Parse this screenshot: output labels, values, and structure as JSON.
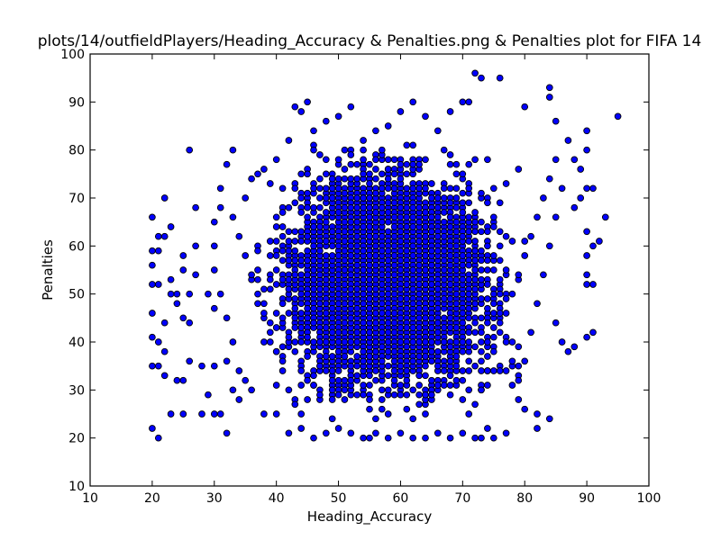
{
  "chart_data": {
    "type": "scatter",
    "title": "plots/14/outfieldPlayers/Heading_Accuracy & Penalties.png & Penalties plot for FIFA 14",
    "xlabel": "Heading_Accuracy",
    "ylabel": "Penalties",
    "xlim": [
      10,
      100
    ],
    "ylim": [
      10,
      100
    ],
    "xticks": [
      "10",
      "20",
      "30",
      "40",
      "50",
      "60",
      "70",
      "80",
      "90",
      "100"
    ],
    "yticks": [
      "10",
      "20",
      "30",
      "40",
      "50",
      "60",
      "70",
      "80",
      "90",
      "100"
    ],
    "grid": false,
    "marker_color": "#0000ff",
    "marker_edge": "#000000",
    "series": [
      {
        "points": [
          [
            20,
            22
          ],
          [
            21,
            20
          ],
          [
            20,
            35
          ],
          [
            21,
            35
          ],
          [
            22,
            33
          ],
          [
            20,
            41
          ],
          [
            21,
            40
          ],
          [
            22,
            38
          ],
          [
            20,
            46
          ],
          [
            22,
            44
          ],
          [
            20,
            52
          ],
          [
            21,
            52
          ],
          [
            20,
            56
          ],
          [
            21,
            59
          ],
          [
            20,
            59
          ],
          [
            20,
            66
          ],
          [
            21,
            62
          ],
          [
            22,
            62
          ],
          [
            22,
            70
          ],
          [
            23,
            64
          ],
          [
            23,
            50
          ],
          [
            24,
            48
          ],
          [
            23,
            53
          ],
          [
            24,
            50
          ],
          [
            25,
            45
          ],
          [
            25,
            55
          ],
          [
            25,
            58
          ],
          [
            23,
            25
          ],
          [
            25,
            25
          ],
          [
            24,
            32
          ],
          [
            25,
            32
          ],
          [
            26,
            80
          ],
          [
            26,
            36
          ],
          [
            26,
            44
          ],
          [
            26,
            50
          ],
          [
            27,
            54
          ],
          [
            27,
            60
          ],
          [
            27,
            68
          ],
          [
            28,
            25
          ],
          [
            28,
            35
          ],
          [
            29,
            29
          ],
          [
            29,
            50
          ],
          [
            30,
            25
          ],
          [
            30,
            35
          ],
          [
            30,
            47
          ],
          [
            31,
            25
          ],
          [
            31,
            72
          ],
          [
            32,
            21
          ],
          [
            32,
            77
          ],
          [
            32,
            36
          ],
          [
            33,
            80
          ],
          [
            33,
            30
          ],
          [
            34,
            28
          ],
          [
            35,
            70
          ],
          [
            36,
            74
          ],
          [
            37,
            75
          ],
          [
            38,
            76
          ],
          [
            40,
            78
          ],
          [
            42,
            82
          ],
          [
            43,
            89
          ],
          [
            44,
            88
          ],
          [
            45,
            90
          ],
          [
            46,
            84
          ],
          [
            48,
            86
          ],
          [
            50,
            87
          ],
          [
            52,
            89
          ],
          [
            54,
            82
          ],
          [
            56,
            84
          ],
          [
            58,
            85
          ],
          [
            60,
            88
          ],
          [
            62,
            90
          ],
          [
            64,
            87
          ],
          [
            66,
            84
          ],
          [
            68,
            88
          ],
          [
            70,
            90
          ],
          [
            71,
            90
          ],
          [
            72,
            96
          ],
          [
            73,
            95
          ],
          [
            76,
            95
          ],
          [
            80,
            89
          ],
          [
            84,
            93
          ],
          [
            84,
            91
          ],
          [
            85,
            86
          ],
          [
            87,
            82
          ],
          [
            88,
            78
          ],
          [
            90,
            84
          ],
          [
            90,
            80
          ],
          [
            89,
            76
          ],
          [
            90,
            72
          ],
          [
            91,
            72
          ],
          [
            89,
            70
          ],
          [
            88,
            68
          ],
          [
            90,
            63
          ],
          [
            90,
            58
          ],
          [
            91,
            60
          ],
          [
            92,
            61
          ],
          [
            93,
            66
          ],
          [
            95,
            87
          ],
          [
            90,
            54
          ],
          [
            90,
            52
          ],
          [
            91,
            52
          ],
          [
            91,
            42
          ],
          [
            90,
            41
          ],
          [
            88,
            39
          ],
          [
            87,
            38
          ],
          [
            86,
            40
          ],
          [
            85,
            44
          ],
          [
            84,
            24
          ],
          [
            82,
            22
          ],
          [
            82,
            25
          ],
          [
            80,
            26
          ],
          [
            79,
            28
          ],
          [
            78,
            31
          ],
          [
            77,
            21
          ],
          [
            75,
            20
          ],
          [
            74,
            22
          ],
          [
            73,
            20
          ],
          [
            72,
            20
          ],
          [
            70,
            21
          ],
          [
            68,
            20
          ],
          [
            66,
            21
          ],
          [
            64,
            20
          ],
          [
            62,
            20
          ],
          [
            60,
            21
          ],
          [
            58,
            20
          ],
          [
            56,
            21
          ],
          [
            55,
            20
          ],
          [
            54,
            20
          ],
          [
            52,
            21
          ],
          [
            50,
            22
          ],
          [
            48,
            21
          ],
          [
            46,
            20
          ],
          [
            44,
            22
          ],
          [
            42,
            21
          ],
          [
            40,
            25
          ],
          [
            38,
            25
          ],
          [
            36,
            30
          ],
          [
            35,
            32
          ],
          [
            34,
            34
          ],
          [
            33,
            40
          ],
          [
            32,
            45
          ],
          [
            31,
            50
          ],
          [
            30,
            55
          ],
          [
            30,
            60
          ],
          [
            30,
            65
          ],
          [
            31,
            68
          ],
          [
            33,
            66
          ],
          [
            34,
            62
          ],
          [
            35,
            58
          ],
          [
            36,
            54
          ],
          [
            37,
            50
          ],
          [
            38,
            46
          ],
          [
            39,
            42
          ],
          [
            40,
            38
          ],
          [
            41,
            34
          ],
          [
            42,
            30
          ],
          [
            43,
            27
          ],
          [
            44,
            25
          ],
          [
            45,
            28
          ],
          [
            46,
            31
          ],
          [
            47,
            35
          ],
          [
            48,
            40
          ],
          [
            49,
            45
          ],
          [
            50,
            50
          ],
          [
            51,
            55
          ],
          [
            52,
            60
          ],
          [
            53,
            65
          ],
          [
            54,
            70
          ],
          [
            55,
            75
          ],
          [
            56,
            78
          ],
          [
            57,
            80
          ],
          [
            58,
            76
          ],
          [
            59,
            72
          ],
          [
            60,
            68
          ],
          [
            61,
            64
          ],
          [
            62,
            60
          ],
          [
            63,
            56
          ],
          [
            64,
            52
          ],
          [
            65,
            48
          ],
          [
            66,
            44
          ],
          [
            67,
            40
          ],
          [
            68,
            36
          ],
          [
            69,
            32
          ],
          [
            70,
            28
          ],
          [
            71,
            25
          ],
          [
            72,
            27
          ],
          [
            73,
            30
          ],
          [
            74,
            34
          ],
          [
            75,
            38
          ],
          [
            76,
            42
          ],
          [
            77,
            46
          ],
          [
            78,
            50
          ],
          [
            79,
            54
          ],
          [
            80,
            58
          ],
          [
            81,
            62
          ],
          [
            82,
            66
          ],
          [
            83,
            70
          ],
          [
            84,
            74
          ],
          [
            85,
            78
          ],
          [
            86,
            72
          ],
          [
            85,
            66
          ],
          [
            84,
            60
          ],
          [
            83,
            54
          ],
          [
            82,
            48
          ],
          [
            81,
            42
          ],
          [
            80,
            36
          ],
          [
            79,
            32
          ],
          [
            78,
            36
          ],
          [
            77,
            40
          ],
          [
            76,
            46
          ]
        ]
      }
    ],
    "dense_region": {
      "x_range": [
        36,
        82
      ],
      "y_range": [
        22,
        84
      ],
      "center": [
        58,
        53
      ]
    }
  }
}
